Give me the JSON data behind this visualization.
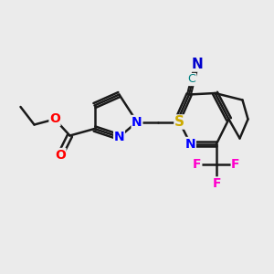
{
  "background_color": "#ebebeb",
  "bond_color": "#1a1a1a",
  "bond_width": 1.8,
  "figsize": [
    3.0,
    3.0
  ],
  "dpi": 100,
  "colors": {
    "N": "#0000ff",
    "O": "#ff0000",
    "S": "#ccaa00",
    "F": "#ff00cc",
    "C": "#1a1a1a",
    "CN_N": "#0000cd",
    "CN_C": "#008080"
  },
  "xlim": [
    0,
    10
  ],
  "ylim": [
    0,
    10
  ],
  "font_size": 10
}
